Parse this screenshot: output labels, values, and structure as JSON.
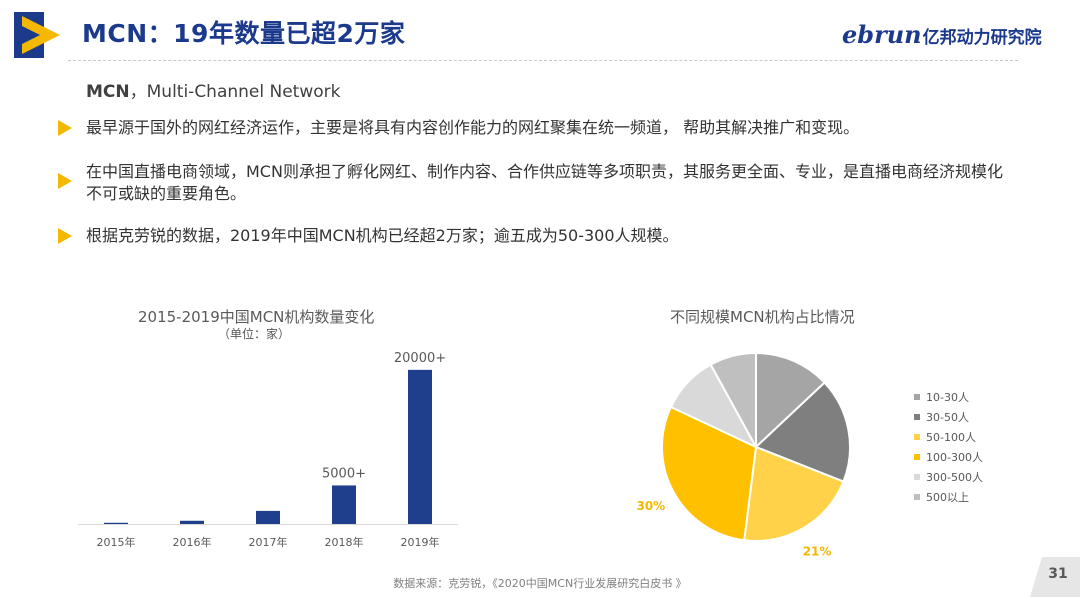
{
  "header": {
    "title": "MCN：19年数量已超2万家",
    "brand_latin_1": "eb",
    "brand_latin_2": "run",
    "brand_cn": "亿邦动力研究院"
  },
  "intro": {
    "term": "MCN",
    "definition": "，Multi-Channel Network"
  },
  "bullets": [
    "最早源于国外的网红经济运作，主要是将具有内容创作能力的网红聚集在统一频道， 帮助其解决推广和变现。",
    "在中国直播电商领域，MCN则承担了孵化网红、制作内容、合作供应链等多项职责，其服务更全面、专业，是直播电商经济规模化不可或缺的重要角色。",
    "根据克劳锐的数据，2019年中国MCN机构已经超2万家；逾五成为50-300人规模。"
  ],
  "footer": {
    "source": "数据来源：克劳锐，《2020中国MCN行业发展研究白皮书 》",
    "page_number": "31"
  },
  "colors": {
    "title_blue": "#1b3a8c",
    "bullet_yellow": "#f5b800",
    "bar_blue": "#1f3f8c"
  },
  "chart_data": [
    {
      "type": "bar",
      "title": "2015-2019中国MCN机构数量变化",
      "subtitle": "（单位：家）",
      "categories": [
        "2015年",
        "2016年",
        "2017年",
        "2018年",
        "2019年"
      ],
      "values": [
        160,
        420,
        1700,
        5000,
        20000
      ],
      "data_labels": [
        "",
        "",
        "",
        "5000+",
        "20000+"
      ],
      "ylim": [
        0,
        20500
      ],
      "grid": false,
      "legend": "none"
    },
    {
      "type": "pie",
      "title": "不同规模MCN机构占比情况",
      "categories": [
        "10-30人",
        "30-50人",
        "50-100人",
        "100-300人",
        "300-500人",
        "500以上"
      ],
      "values": [
        13,
        18,
        21,
        30,
        10,
        8
      ],
      "data_labels": [
        "",
        "",
        "21%",
        "30%",
        "",
        ""
      ],
      "colors": [
        "#a5a5a5",
        "#7f7f7f",
        "#ffd24a",
        "#ffc000",
        "#d9d9d9",
        "#bfbfbf"
      ],
      "legend": "right"
    }
  ]
}
